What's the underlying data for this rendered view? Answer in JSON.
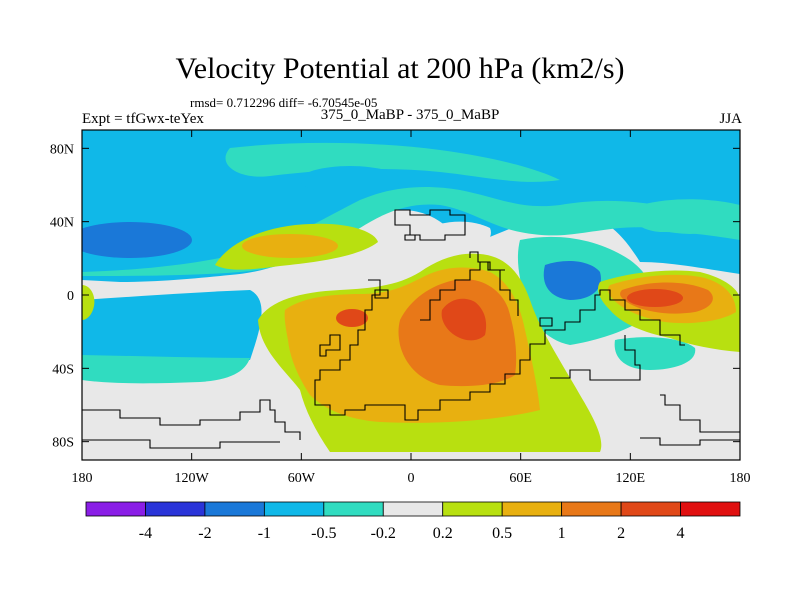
{
  "chart_data": {
    "type": "heatmap",
    "title": "Velocity Potential at 200 hPa (km2/s)",
    "stats_text": "rmsd= 0.712296 diff= -6.70545e-05",
    "left_label": "Expt = tfGwx-teYex",
    "center_label": "375_0_MaBP - 375_0_MaBP",
    "right_label": "JJA",
    "x_range": [
      -180,
      180
    ],
    "y_range": [
      -90,
      90
    ],
    "x_ticks": [
      {
        "value": -180,
        "label": "180"
      },
      {
        "value": -120,
        "label": "120W"
      },
      {
        "value": -60,
        "label": "60W"
      },
      {
        "value": 0,
        "label": "0"
      },
      {
        "value": 60,
        "label": "60E"
      },
      {
        "value": 120,
        "label": "120E"
      },
      {
        "value": 180,
        "label": "180"
      }
    ],
    "y_ticks": [
      {
        "value": 80,
        "label": "80N"
      },
      {
        "value": 40,
        "label": "40N"
      },
      {
        "value": 0,
        "label": "0"
      },
      {
        "value": -40,
        "label": "40S"
      },
      {
        "value": -80,
        "label": "80S"
      }
    ],
    "levels": [
      -4,
      -2,
      -1,
      -0.5,
      -0.2,
      0.2,
      0.5,
      1,
      2,
      4
    ],
    "level_labels": [
      "-4",
      "-2",
      "-1",
      "-0.5",
      "-0.2",
      "0.2",
      "0.5",
      "1",
      "2",
      "4"
    ],
    "colorbar_colors": [
      "#8a1ee6",
      "#2a34d8",
      "#1a78d8",
      "#10b8e8",
      "#30dcc0",
      "#e8e8e8",
      "#b8e010",
      "#e8b010",
      "#e87818",
      "#e04818",
      "#e01010"
    ],
    "colors": {
      "strong_neg": "#1a78d8",
      "mid_neg": "#10b8e8",
      "weak_neg": "#30dcc0",
      "neutral": "#e8e8e8",
      "weak_pos": "#b8e010",
      "mid_pos": "#e8b010",
      "strong_pos": "#e87818",
      "peak_pos": "#e04818"
    }
  }
}
